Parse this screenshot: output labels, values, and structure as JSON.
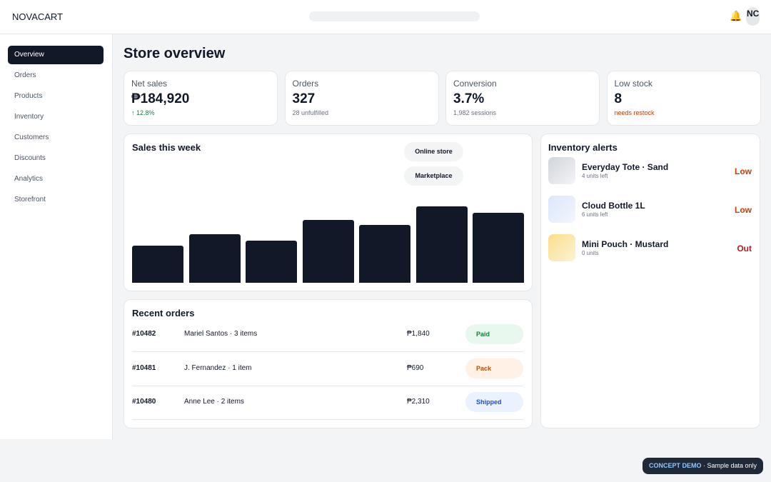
{
  "header": {
    "brand": "NOVACART",
    "avatar": "NC"
  },
  "nav": {
    "items": [
      "Overview",
      "Orders",
      "Products",
      "Inventory",
      "Customers",
      "Discounts",
      "Analytics",
      "Storefront"
    ]
  },
  "page_title": "Store overview",
  "kpis": [
    {
      "label": "Net sales",
      "value": "₱184,920",
      "note": "↑ 12.8%"
    },
    {
      "label": "Orders",
      "value": "327",
      "note": "28 unfulfilled"
    },
    {
      "label": "Conversion",
      "value": "3.7%",
      "note": "1,982 sessions"
    },
    {
      "label": "Low stock",
      "value": "8",
      "note": "needs restock"
    }
  ],
  "sales": {
    "title": "Sales this week",
    "legend": [
      "Online store",
      "Marketplace"
    ],
    "chart_data": {
      "type": "bar",
      "color": "#111827",
      "values": [
        52,
        68,
        59,
        88,
        81,
        107,
        98
      ]
    }
  },
  "orders": {
    "title": "Recent orders",
    "rows": [
      {
        "id": "#10482",
        "customer": "Mariel Santos · 3 items",
        "amount": "₱1,840",
        "status": "Paid"
      },
      {
        "id": "#10481",
        "customer": "J. Fernandez · 1 item",
        "amount": "₱690",
        "status": "Pack"
      },
      {
        "id": "#10480",
        "customer": "Anne Lee · 2 items",
        "amount": "₱2,310",
        "status": "Shipped"
      }
    ]
  },
  "inventory": {
    "title": "Inventory alerts",
    "items": [
      {
        "name": "Everyday Tote · Sand",
        "stock": "4 units left",
        "level": "Low"
      },
      {
        "name": "Cloud Bottle 1L",
        "stock": "6 units left",
        "level": "Low"
      },
      {
        "name": "Mini Pouch · Mustard",
        "stock": "0 units",
        "level": "Out"
      }
    ]
  },
  "footer": {
    "badge": "CONCEPT DEMO",
    "text": " · Sample data only"
  }
}
